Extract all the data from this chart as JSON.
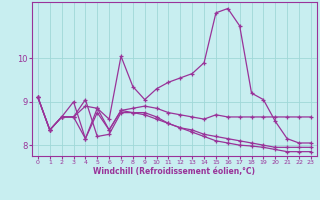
{
  "xlabel": "Windchill (Refroidissement éolien,°C)",
  "xlim": [
    -0.5,
    23.5
  ],
  "ylim": [
    7.75,
    11.3
  ],
  "yticks": [
    8,
    9,
    10
  ],
  "xticks": [
    0,
    1,
    2,
    3,
    4,
    5,
    6,
    7,
    8,
    9,
    10,
    11,
    12,
    13,
    14,
    15,
    16,
    17,
    18,
    19,
    20,
    21,
    22,
    23
  ],
  "bg_color": "#c8eef0",
  "line_color": "#993399",
  "grid_color": "#a0d8d8",
  "lines": [
    [
      9.1,
      8.35,
      8.65,
      8.65,
      8.9,
      8.85,
      8.6,
      10.05,
      9.35,
      9.05,
      9.3,
      9.45,
      9.55,
      9.65,
      9.9,
      11.05,
      11.15,
      10.75,
      9.2,
      9.05,
      8.55,
      8.15,
      8.05,
      8.05
    ],
    [
      9.1,
      8.35,
      8.65,
      9.0,
      8.15,
      8.75,
      8.35,
      8.8,
      8.85,
      8.9,
      8.85,
      8.75,
      8.7,
      8.65,
      8.6,
      8.7,
      8.65,
      8.65,
      8.65,
      8.65,
      8.65,
      8.65,
      8.65,
      8.65
    ],
    [
      9.1,
      8.35,
      8.65,
      8.65,
      9.05,
      8.2,
      8.25,
      8.75,
      8.75,
      8.75,
      8.65,
      8.5,
      8.4,
      8.35,
      8.25,
      8.2,
      8.15,
      8.1,
      8.05,
      8.0,
      7.95,
      7.95,
      7.95,
      7.95
    ],
    [
      9.1,
      8.35,
      8.65,
      8.65,
      8.15,
      8.85,
      8.35,
      8.8,
      8.75,
      8.7,
      8.6,
      8.5,
      8.4,
      8.3,
      8.2,
      8.1,
      8.05,
      8.0,
      7.98,
      7.95,
      7.9,
      7.85,
      7.85,
      7.85
    ]
  ]
}
